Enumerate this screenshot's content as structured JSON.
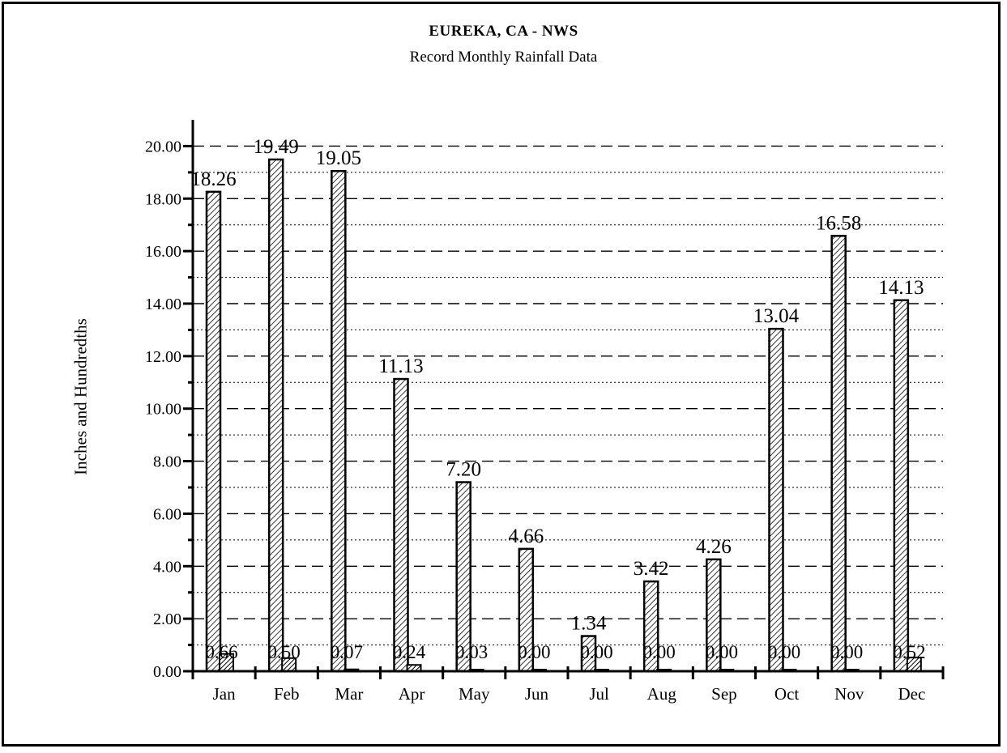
{
  "chart_data": {
    "type": "bar",
    "title": "EUREKA, CA - NWS",
    "subtitle": "Record Monthly Rainfall Data",
    "ylabel": "Inches and Hundredths",
    "xlabel": "",
    "ylim": [
      0,
      21
    ],
    "yticks": [
      "0.00",
      "2.00",
      "4.00",
      "6.00",
      "8.00",
      "10.00",
      "12.00",
      "14.00",
      "16.00",
      "18.00",
      "20.00"
    ],
    "categories": [
      "Jan",
      "Feb",
      "Mar",
      "Apr",
      "May",
      "Jun",
      "Jul",
      "Aug",
      "Sep",
      "Oct",
      "Nov",
      "Dec"
    ],
    "series": [
      {
        "values": [
          18.26,
          19.49,
          19.05,
          11.13,
          7.2,
          4.66,
          1.34,
          3.42,
          4.26,
          13.04,
          16.58,
          14.13
        ],
        "labels": [
          "18.26",
          "19.49",
          "19.05",
          "11.13",
          "7.20",
          "4.66",
          "1.34",
          "3.42",
          "4.26",
          "13.04",
          "16.58",
          "14.13"
        ]
      },
      {
        "values": [
          0.66,
          0.5,
          0.07,
          0.24,
          0.03,
          0.0,
          0.0,
          0.0,
          0.0,
          0.0,
          0.0,
          0.52
        ],
        "labels": [
          "0.66",
          "0.50",
          "0.07",
          "0.24",
          "0.03",
          "0.00",
          "0.00",
          "0.00",
          "0.00",
          "0.00",
          "0.00",
          "0.52"
        ]
      }
    ],
    "grid": true,
    "colors": {
      "bar_fill": "#ffffff",
      "bar_hatch": "#000000",
      "axis": "#000000"
    }
  }
}
